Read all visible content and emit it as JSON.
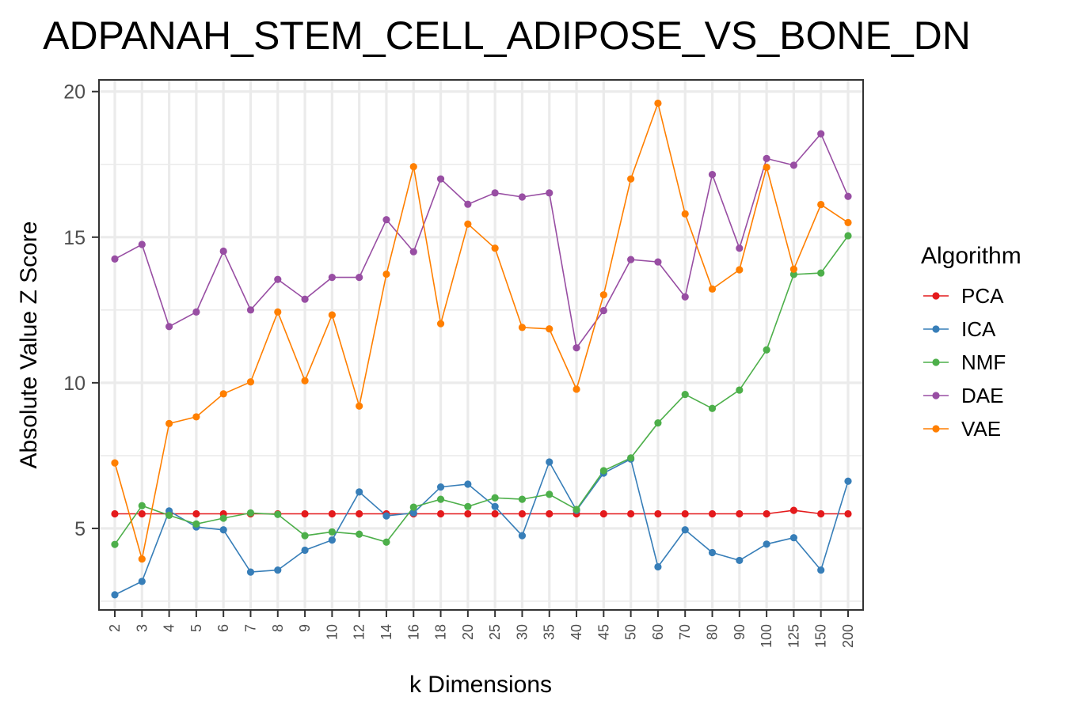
{
  "chart_data": {
    "type": "line",
    "title": "ADPANAH_STEM_CELL_ADIPOSE_VS_BONE_DN",
    "xlabel": "k Dimensions",
    "ylabel": "Absolute Value Z Score",
    "ylim": [
      2.2,
      20.4
    ],
    "yticks": [
      5,
      10,
      15,
      20
    ],
    "grid": true,
    "legend": {
      "title": "Algorithm",
      "placement": "right"
    },
    "categories": [
      "2",
      "3",
      "4",
      "5",
      "6",
      "7",
      "8",
      "9",
      "10",
      "12",
      "14",
      "16",
      "18",
      "20",
      "25",
      "30",
      "35",
      "40",
      "45",
      "50",
      "60",
      "70",
      "80",
      "90",
      "100",
      "125",
      "150",
      "200"
    ],
    "series": [
      {
        "name": "PCA",
        "color": "#e41a1c",
        "values": [
          5.5,
          5.5,
          5.5,
          5.5,
          5.5,
          5.5,
          5.5,
          5.5,
          5.5,
          5.5,
          5.5,
          5.5,
          5.5,
          5.5,
          5.5,
          5.5,
          5.5,
          5.5,
          5.5,
          5.5,
          5.5,
          5.5,
          5.5,
          5.5,
          5.5,
          5.62,
          5.5,
          5.5
        ]
      },
      {
        "name": "ICA",
        "color": "#377eb8",
        "values": [
          2.72,
          3.18,
          5.6,
          5.05,
          4.95,
          3.5,
          3.57,
          4.25,
          4.6,
          6.25,
          5.43,
          5.53,
          6.42,
          6.52,
          5.75,
          4.75,
          7.28,
          5.62,
          6.9,
          7.38,
          3.68,
          4.95,
          4.17,
          3.9,
          4.46,
          4.68,
          3.57,
          6.62
        ]
      },
      {
        "name": "NMF",
        "color": "#4daf4a",
        "values": [
          4.45,
          5.78,
          5.45,
          5.15,
          5.35,
          5.53,
          5.48,
          4.75,
          4.88,
          4.8,
          4.53,
          5.73,
          6.0,
          5.75,
          6.05,
          6.0,
          6.17,
          5.65,
          6.98,
          7.42,
          8.62,
          9.6,
          9.12,
          9.75,
          11.13,
          13.72,
          13.77,
          15.05
        ]
      },
      {
        "name": "DAE",
        "color": "#984ea3",
        "values": [
          14.25,
          14.75,
          11.93,
          12.43,
          14.52,
          12.5,
          13.55,
          12.87,
          13.62,
          13.62,
          15.6,
          14.5,
          17.0,
          16.13,
          16.52,
          16.38,
          16.52,
          11.2,
          12.48,
          14.23,
          14.15,
          12.95,
          17.15,
          14.62,
          17.7,
          17.47,
          18.55,
          16.4
        ]
      },
      {
        "name": "VAE",
        "color": "#ff7f00",
        "values": [
          7.25,
          3.95,
          8.6,
          8.83,
          9.62,
          10.03,
          12.43,
          10.07,
          12.33,
          9.2,
          13.73,
          17.42,
          12.03,
          15.45,
          14.62,
          11.9,
          11.85,
          9.78,
          13.02,
          17.0,
          19.6,
          15.8,
          13.22,
          13.88,
          17.4,
          13.9,
          16.12,
          15.5
        ]
      }
    ]
  }
}
